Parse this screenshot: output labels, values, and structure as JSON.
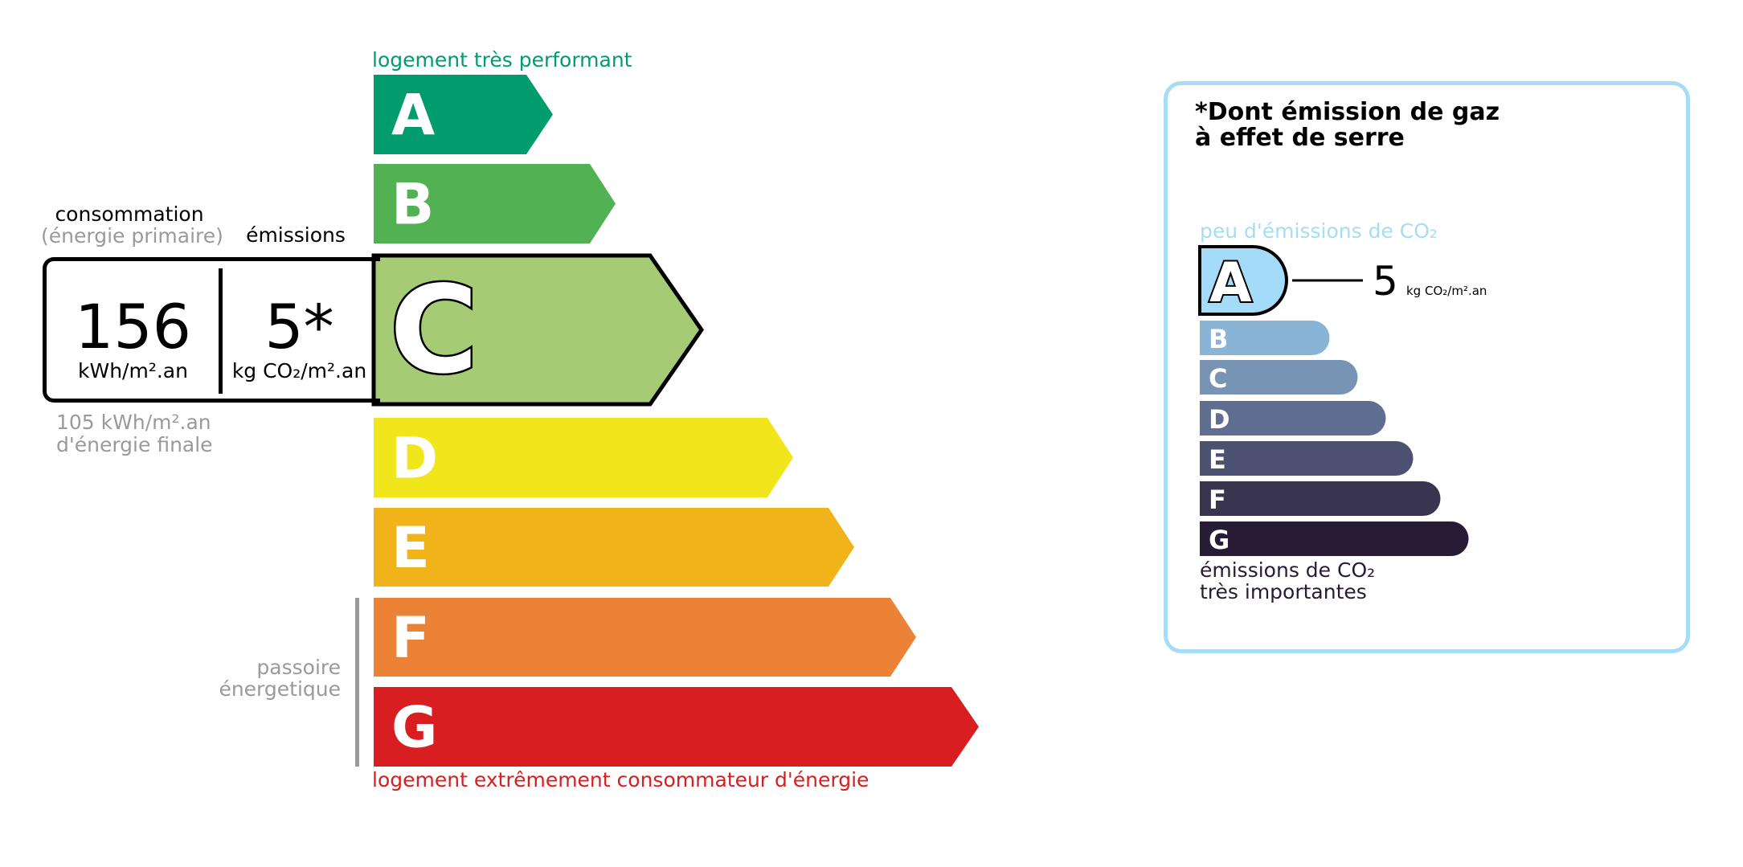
{
  "energy": {
    "top_label": "logement très performant",
    "bottom_label": "logement extrêmement consommateur d'énergie",
    "classes": [
      {
        "letter": "A",
        "color": "#009c6d"
      },
      {
        "letter": "B",
        "color": "#52b153"
      },
      {
        "letter": "C",
        "color": "#a5cc74"
      },
      {
        "letter": "D",
        "color": "#f0e61b"
      },
      {
        "letter": "E",
        "color": "#f0b41a"
      },
      {
        "letter": "F",
        "color": "#eb8235"
      },
      {
        "letter": "G",
        "color": "#d81e20"
      }
    ],
    "active_class": "C",
    "consumption_label": "consommation",
    "consumption_sublabel": "(énergie primaire)",
    "emissions_label": "émissions",
    "consumption_value": "156",
    "consumption_unit": "kWh/m².an",
    "emissions_value": "5*",
    "emissions_unit": "kg CO₂/m².an",
    "final_energy_line1": "105 kWh/m².an",
    "final_energy_line2": "d'énergie finale",
    "passoire_line1": "passoire",
    "passoire_line2": "énergetique",
    "top_label_color": "#009c6d",
    "bottom_label_color": "#d81e20"
  },
  "ges": {
    "title_line1": "*Dont émission de gaz",
    "title_line2": "à effet de serre",
    "top_label": "peu d'émissions de CO₂",
    "bottom_line1": "émissions de CO₂",
    "bottom_line2": "très importantes",
    "classes": [
      {
        "letter": "A",
        "color": "#a4dbf8"
      },
      {
        "letter": "B",
        "color": "#8ab4d6"
      },
      {
        "letter": "C",
        "color": "#7794b4"
      },
      {
        "letter": "D",
        "color": "#5f6e90"
      },
      {
        "letter": "E",
        "color": "#4c5071"
      },
      {
        "letter": "F",
        "color": "#393551"
      },
      {
        "letter": "G",
        "color": "#281b35"
      }
    ],
    "active_class": "A",
    "value": "5",
    "unit": "kg CO₂/m².an",
    "border_color": "#a6dcf5"
  }
}
